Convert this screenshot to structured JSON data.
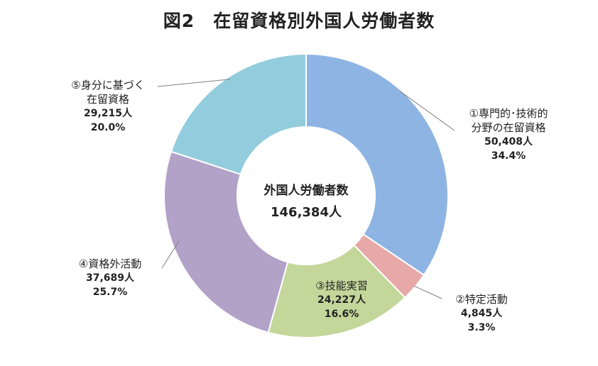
{
  "chart_data": {
    "type": "pie",
    "title": "図2　在留資格別外国人労働者数",
    "center_label": "外国人労働者数",
    "center_value": "146,384人",
    "slices": [
      {
        "label": "①専門的･技術的分野の在留資格",
        "label_lines": [
          "①専門的･技術的",
          "分野の在留資格"
        ],
        "value": 50408,
        "value_text": "50,408人",
        "percent_text": "34.4%",
        "color": "#8eb4e3"
      },
      {
        "label": "②特定活動",
        "label_lines": [
          "②特定活動"
        ],
        "value": 4845,
        "value_text": "4,845人",
        "percent_text": "3.3%",
        "color": "#e6a9a8"
      },
      {
        "label": "③技能実習",
        "label_lines": [
          "③技能実習"
        ],
        "value": 24227,
        "value_text": "24,227人",
        "percent_text": "16.6%",
        "color": "#c3d79b"
      },
      {
        "label": "④資格外活動",
        "label_lines": [
          "④資格外活動"
        ],
        "value": 37689,
        "value_text": "37,689人",
        "percent_text": "25.7%",
        "color": "#b2a2c7"
      },
      {
        "label": "⑤身分に基づく在留資格",
        "label_lines": [
          "⑤身分に基づく",
          "在留資格"
        ],
        "value": 29215,
        "value_text": "29,215人",
        "percent_text": "20.0%",
        "color": "#93cddd"
      }
    ]
  }
}
